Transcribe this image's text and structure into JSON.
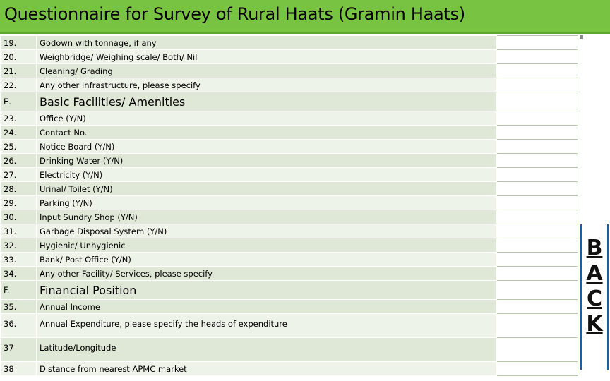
{
  "header": {
    "title": "Questionnaire for Survey of Rural Haats  (Gramin Haats)"
  },
  "rows": [
    {
      "num": "19.",
      "label": "Godown with tonnage, if any",
      "kind": "item"
    },
    {
      "num": "20.",
      "label": "Weighbridge/ Weighing scale/ Both/ Nil",
      "kind": "item"
    },
    {
      "num": "21.",
      "label": "Cleaning/ Grading",
      "kind": "item"
    },
    {
      "num": "22.",
      "label": "Any other Infrastructure, please specify",
      "kind": "item"
    },
    {
      "num": "E.",
      "label": "Basic Facilities/ Amenities",
      "kind": "section"
    },
    {
      "num": "23.",
      "label": "Office (Y/N)",
      "kind": "item"
    },
    {
      "num": "24.",
      "label": "Contact No.",
      "kind": "item"
    },
    {
      "num": "25.",
      "label": "Notice Board (Y/N)",
      "kind": "item"
    },
    {
      "num": "26.",
      "label": "Drinking Water (Y/N)",
      "kind": "item"
    },
    {
      "num": "27.",
      "label": "Electricity (Y/N)",
      "kind": "item"
    },
    {
      "num": "28.",
      "label": "Urinal/ Toilet (Y/N)",
      "kind": "item"
    },
    {
      "num": "29.",
      "label": "Parking (Y/N)",
      "kind": "item"
    },
    {
      "num": "30.",
      "label": "Input Sundry Shop (Y/N)",
      "kind": "item"
    },
    {
      "num": "31.",
      "label": "Garbage Disposal System (Y/N)",
      "kind": "item"
    },
    {
      "num": "32.",
      "label": "Hygienic/ Unhygienic",
      "kind": "item"
    },
    {
      "num": "33.",
      "label": "Bank/ Post Office (Y/N)",
      "kind": "item"
    },
    {
      "num": "34.",
      "label": "Any other Facility/ Services, please specify",
      "kind": "item"
    },
    {
      "num": "F.",
      "label": "Financial Position",
      "kind": "section"
    },
    {
      "num": "35.",
      "label": "Annual Income",
      "kind": "item"
    },
    {
      "num": "36.",
      "label": "Annual Expenditure, please specify the heads of expenditure",
      "kind": "tall"
    },
    {
      "num": "37",
      "label": "Latitude/Longitude",
      "kind": "tall"
    },
    {
      "num": "38",
      "label": "Distance from nearest APMC market",
      "kind": "item"
    }
  ],
  "back_link": {
    "letters": [
      "B",
      "A",
      "C",
      "K"
    ]
  },
  "colors": {
    "title_bar": "#79c342",
    "row_fill": "#dfe8d6",
    "row_alt": "#eef3ea"
  }
}
